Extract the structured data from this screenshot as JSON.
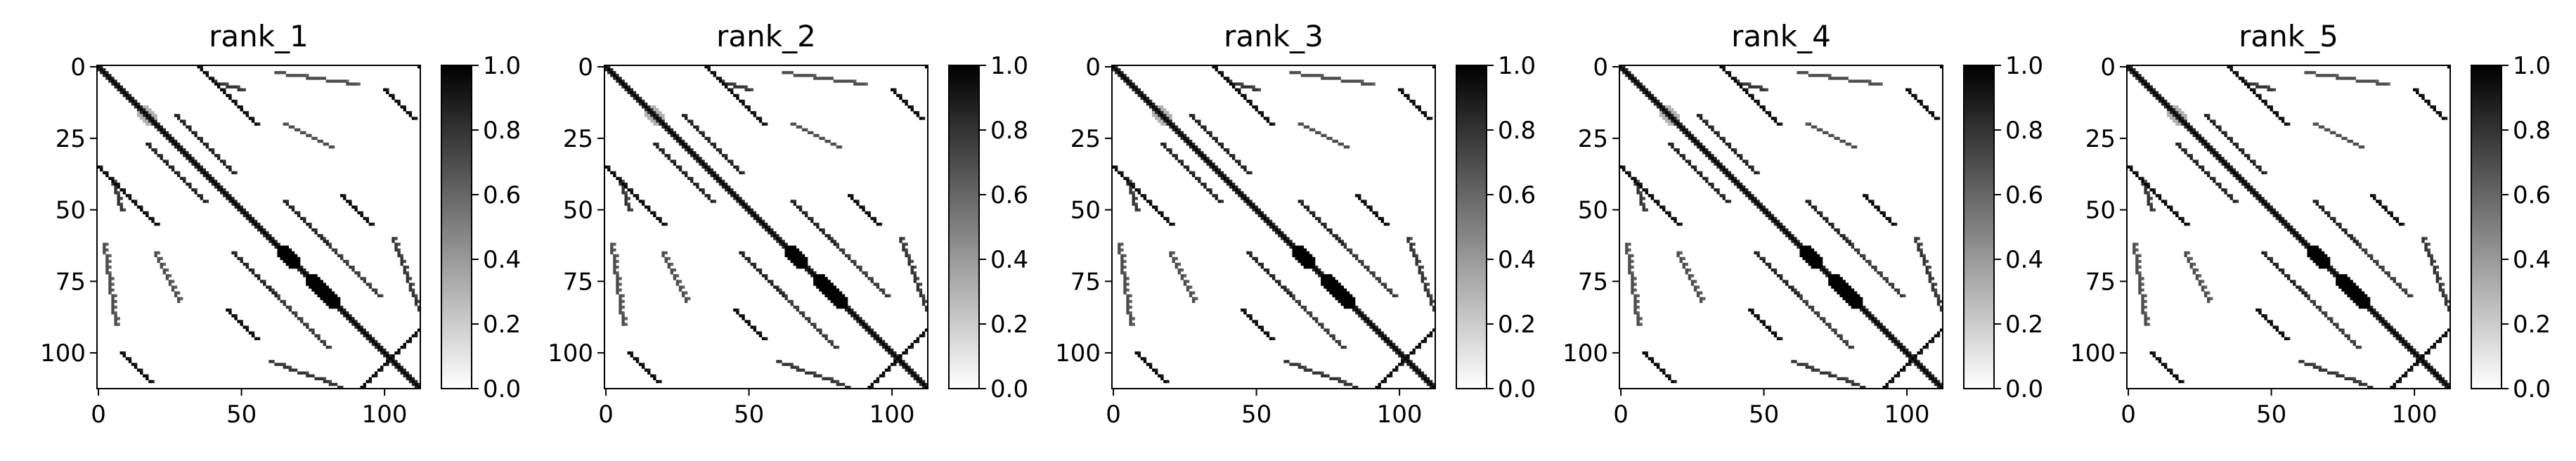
{
  "chart_data": {
    "type": "heatmap",
    "colormap": "gray_r",
    "matrix_size": 113,
    "panels": [
      {
        "title": "rank_1"
      },
      {
        "title": "rank_2"
      },
      {
        "title": "rank_3"
      },
      {
        "title": "rank_4"
      },
      {
        "title": "rank_5"
      }
    ],
    "x_ticks": [
      0,
      50,
      100
    ],
    "x_tick_labels": [
      "0",
      "50",
      "100"
    ],
    "y_ticks": [
      0,
      25,
      50,
      75,
      100
    ],
    "y_tick_labels": [
      "0",
      "25",
      "50",
      "75",
      "100"
    ],
    "colorbar": {
      "vmin": 0.0,
      "vmax": 1.0,
      "ticks": [
        0.0,
        0.2,
        0.4,
        0.6,
        0.8,
        1.0
      ],
      "tick_labels": [
        "0.0",
        "0.2",
        "0.4",
        "0.6",
        "0.8",
        "1.0"
      ]
    },
    "features": {
      "main_diagonal": {
        "from": 0,
        "to": 112,
        "value": 1.0
      },
      "blocks": [
        {
          "from": 14,
          "to": 20,
          "value": 0.3
        },
        {
          "from": 63,
          "to": 70,
          "value": 1.0
        },
        {
          "from": 73,
          "to": 84,
          "value": 1.0
        }
      ],
      "segments": [
        {
          "r0": 0,
          "c0": 35,
          "r1": 20,
          "c1": 55,
          "value": 1.0
        },
        {
          "r0": 8,
          "c0": 100,
          "r1": 18,
          "c1": 110,
          "value": 1.0
        },
        {
          "r0": 35,
          "c0": 0,
          "r1": 55,
          "c1": 20,
          "value": 1.0
        },
        {
          "r0": 100,
          "c0": 8,
          "r1": 110,
          "c1": 18,
          "value": 1.0
        },
        {
          "r0": 0,
          "c0": 112,
          "r1": 0,
          "c1": 112,
          "value": 1.0
        },
        {
          "r0": 92,
          "c0": 112,
          "r1": 112,
          "c1": 92,
          "value": 1.0
        },
        {
          "r0": 27,
          "c0": 17,
          "r1": 47,
          "c1": 37,
          "value": 0.9
        },
        {
          "r0": 17,
          "c0": 27,
          "r1": 37,
          "c1": 47,
          "value": 0.9
        },
        {
          "r0": 65,
          "c0": 47,
          "r1": 80,
          "c1": 62,
          "value": 0.9
        },
        {
          "r0": 47,
          "c0": 65,
          "r1": 62,
          "c1": 80,
          "value": 0.9
        },
        {
          "r0": 45,
          "c0": 85,
          "r1": 55,
          "c1": 95,
          "value": 1.0
        },
        {
          "r0": 85,
          "c0": 45,
          "r1": 95,
          "c1": 55,
          "value": 1.0
        },
        {
          "r0": 60,
          "c0": 78,
          "r1": 80,
          "c1": 98,
          "value": 0.8
        },
        {
          "r0": 78,
          "c0": 60,
          "r1": 98,
          "c1": 80,
          "value": 0.8
        },
        {
          "r0": 65,
          "c0": 20,
          "r1": 82,
          "c1": 28,
          "value": 0.7
        },
        {
          "r0": 20,
          "c0": 65,
          "r1": 28,
          "c1": 82,
          "value": 0.7
        },
        {
          "r0": 40,
          "c0": 5,
          "r1": 50,
          "c1": 8,
          "value": 0.8
        },
        {
          "r0": 5,
          "c0": 40,
          "r1": 8,
          "c1": 50,
          "value": 0.8
        },
        {
          "r0": 103,
          "c0": 60,
          "r1": 112,
          "c1": 85,
          "value": 0.8
        },
        {
          "r0": 60,
          "c0": 103,
          "r1": 85,
          "c1": 112,
          "value": 0.8
        },
        {
          "r0": 2,
          "c0": 62,
          "r1": 6,
          "c1": 90,
          "value": 0.7
        },
        {
          "r0": 62,
          "c0": 2,
          "r1": 90,
          "c1": 6,
          "value": 0.7
        }
      ]
    }
  }
}
